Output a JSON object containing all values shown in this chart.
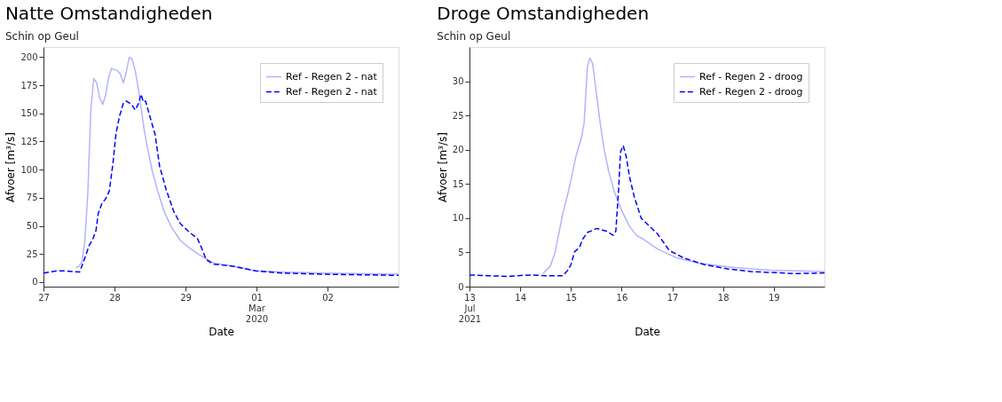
{
  "chart_data": [
    {
      "type": "line",
      "title": "Natte Omstandigheden",
      "subtitle": "Schin op Geul",
      "xlabel": "Date",
      "ylabel": "Afvoer [m³/s]",
      "xlim": [
        "2020-02-27T00:00",
        "2020-03-03T00:00"
      ],
      "xticks": [
        {
          "value": "2020-02-27",
          "label": "27"
        },
        {
          "value": "2020-02-28",
          "label": "28"
        },
        {
          "value": "2020-02-29",
          "label": "29"
        },
        {
          "value": "2020-03-01",
          "label": "01 Mar 2020"
        },
        {
          "value": "2020-03-02",
          "label": "02"
        }
      ],
      "ylim": [
        -4,
        209
      ],
      "yticks": [
        0,
        25,
        50,
        75,
        100,
        125,
        150,
        175,
        200
      ],
      "grid": false,
      "legend": "top right",
      "series": [
        {
          "name": "Ref - Regen 2 - nat",
          "color": "#b3b3ff",
          "line_style": "solid",
          "x": [
            "2020-02-27T11:00",
            "2020-02-27T12:00",
            "2020-02-27T13:00",
            "2020-02-27T14:00",
            "2020-02-27T15:00",
            "2020-02-27T16:00",
            "2020-02-27T17:00",
            "2020-02-27T18:00",
            "2020-02-27T19:00",
            "2020-02-27T20:00",
            "2020-02-27T21:00",
            "2020-02-27T22:00",
            "2020-02-27T23:00",
            "2020-02-28T00:00",
            "2020-02-28T01:00",
            "2020-02-28T02:00",
            "2020-02-28T03:00",
            "2020-02-28T04:00",
            "2020-02-28T05:00",
            "2020-02-28T06:00",
            "2020-02-28T07:00",
            "2020-02-28T08:00",
            "2020-02-28T09:00",
            "2020-02-28T10:00",
            "2020-02-28T11:15",
            "2020-02-28T12:45",
            "2020-02-28T14:30",
            "2020-02-28T16:45",
            "2020-02-28T19:15",
            "2020-02-28T22:15",
            "2020-02-29T01:30",
            "2020-02-29T05:30",
            "2020-02-29T09:30",
            "2020-02-29T16:30",
            "2020-02-29T23:45",
            "2020-03-01T09:00",
            "2020-03-01T23:30",
            "2020-03-03T00:00"
          ],
          "values": [
            13,
            14,
            18,
            37,
            80,
            153,
            181,
            177,
            164,
            158,
            166,
            182,
            190,
            189,
            188,
            185,
            177,
            187,
            200,
            198,
            188,
            173,
            155,
            136,
            118,
            99,
            82,
            63,
            49,
            37,
            30,
            23,
            17,
            14,
            10,
            9,
            8,
            7
          ]
        },
        {
          "name": "Ref - Regen 2 - nat",
          "color": "#0000ff",
          "line_style": "dashed",
          "x": [
            "2020-02-27T00:00",
            "2020-02-27T04:30",
            "2020-02-27T06:45",
            "2020-02-27T12:15",
            "2020-02-27T13:30",
            "2020-02-27T15:30",
            "2020-02-27T16:30",
            "2020-02-27T17:45",
            "2020-02-27T18:30",
            "2020-02-27T19:45",
            "2020-02-27T21:00",
            "2020-02-27T22:15",
            "2020-02-27T23:30",
            "2020-02-28T00:30",
            "2020-02-28T01:45",
            "2020-02-28T03:00",
            "2020-02-28T04:00",
            "2020-02-28T05:45",
            "2020-02-28T07:00",
            "2020-02-28T08:00",
            "2020-02-28T09:00",
            "2020-02-28T09:45",
            "2020-02-28T10:30",
            "2020-02-28T12:00",
            "2020-02-28T13:45",
            "2020-02-28T15:15",
            "2020-02-28T17:30",
            "2020-02-28T20:00",
            "2020-02-28T22:15",
            "2020-02-29T01:30",
            "2020-02-29T04:00",
            "2020-02-29T05:30",
            "2020-02-29T07:00",
            "2020-02-29T09:30",
            "2020-02-29T16:30",
            "2020-02-29T23:45",
            "2020-03-01T09:00",
            "2020-03-01T23:30",
            "2020-03-03T00:00"
          ],
          "values": [
            8,
            10,
            10,
            9,
            18,
            33,
            37,
            46,
            61,
            70,
            74,
            81,
            106,
            132,
            148,
            159,
            161,
            158,
            153,
            158,
            167,
            160,
            161,
            147,
            131,
            103,
            82,
            63,
            52,
            44,
            39,
            30,
            20,
            16,
            14,
            10,
            8,
            7,
            6
          ]
        }
      ]
    },
    {
      "type": "line",
      "title": "Droge Omstandigheden",
      "subtitle": "Schin op Geul",
      "xlabel": "Date",
      "ylabel": "Afvoer [m³/s]",
      "xlim": [
        "2021-07-13T00:00",
        "2021-07-20T00:00"
      ],
      "xticks": [
        {
          "value": "2021-07-13",
          "label": "13 Jul 2021"
        },
        {
          "value": "2021-07-14",
          "label": "14"
        },
        {
          "value": "2021-07-15",
          "label": "15"
        },
        {
          "value": "2021-07-16",
          "label": "16"
        },
        {
          "value": "2021-07-17",
          "label": "17"
        },
        {
          "value": "2021-07-18",
          "label": "18"
        },
        {
          "value": "2021-07-19",
          "label": "19"
        }
      ],
      "ylim": [
        0,
        35
      ],
      "yticks": [
        0,
        5,
        10,
        15,
        20,
        25,
        30
      ],
      "grid": false,
      "legend": "top right",
      "series": [
        {
          "name": "Ref - Regen 2 - droog",
          "color": "#b3b3ff",
          "line_style": "solid",
          "x": [
            "2021-07-14T10:45",
            "2021-07-14T14:15",
            "2021-07-14T16:30",
            "2021-07-14T18:30",
            "2021-07-14T20:15",
            "2021-07-14T22:30",
            "2021-07-15T00:45",
            "2021-07-15T02:15",
            "2021-07-15T05:00",
            "2021-07-15T06:15",
            "2021-07-15T07:45",
            "2021-07-15T09:00",
            "2021-07-15T10:15",
            "2021-07-15T11:45",
            "2021-07-15T13:30",
            "2021-07-15T15:30",
            "2021-07-15T17:45",
            "2021-07-15T20:30",
            "2021-07-16T00:00",
            "2021-07-16T03:45",
            "2021-07-16T07:00",
            "2021-07-16T10:30",
            "2021-07-16T17:00",
            "2021-07-17T02:00",
            "2021-07-17T13:00",
            "2021-07-18T05:30",
            "2021-07-18T22:15",
            "2021-07-20T00:00"
          ],
          "values": [
            1.9,
            3.0,
            5.0,
            8.1,
            10.8,
            13.5,
            16.6,
            18.9,
            21.8,
            23.9,
            32,
            33.4,
            32.6,
            29,
            24.7,
            20.4,
            17,
            13.9,
            11.1,
            8.8,
            7.5,
            6.9,
            5.5,
            4.2,
            3.4,
            2.8,
            2.4,
            2.2
          ]
        },
        {
          "name": "Ref - Regen 2 - droog",
          "color": "#0000ff",
          "line_style": "dashed",
          "x": [
            "2021-07-13T00:00",
            "2021-07-13T08:15",
            "2021-07-13T17:45",
            "2021-07-14T04:15",
            "2021-07-14T12:00",
            "2021-07-14T20:15",
            "2021-07-14T22:30",
            "2021-07-15T00:00",
            "2021-07-15T01:45",
            "2021-07-15T04:00",
            "2021-07-15T05:30",
            "2021-07-15T07:45",
            "2021-07-15T12:15",
            "2021-07-15T16:45",
            "2021-07-15T20:00",
            "2021-07-15T21:15",
            "2021-07-15T22:30",
            "2021-07-15T23:30",
            "2021-07-16T00:45",
            "2021-07-16T02:15",
            "2021-07-16T03:45",
            "2021-07-16T06:00",
            "2021-07-16T09:15",
            "2021-07-16T17:00",
            "2021-07-16T22:30",
            "2021-07-17T05:15",
            "2021-07-17T15:15",
            "2021-07-18T02:15",
            "2021-07-18T13:15",
            "2021-07-19T03:45",
            "2021-07-19T09:15",
            "2021-07-20T00:00"
          ],
          "values": [
            1.7,
            1.6,
            1.5,
            1.7,
            1.6,
            1.6,
            2.4,
            3.2,
            5.1,
            5.7,
            6.9,
            7.9,
            8.5,
            8.1,
            7.5,
            8.1,
            13.9,
            19.7,
            20.6,
            18.9,
            16,
            13.1,
            10,
            7.7,
            5.3,
            4.2,
            3.2,
            2.6,
            2.2,
            2.0,
            1.9,
            2.0
          ]
        }
      ]
    }
  ]
}
